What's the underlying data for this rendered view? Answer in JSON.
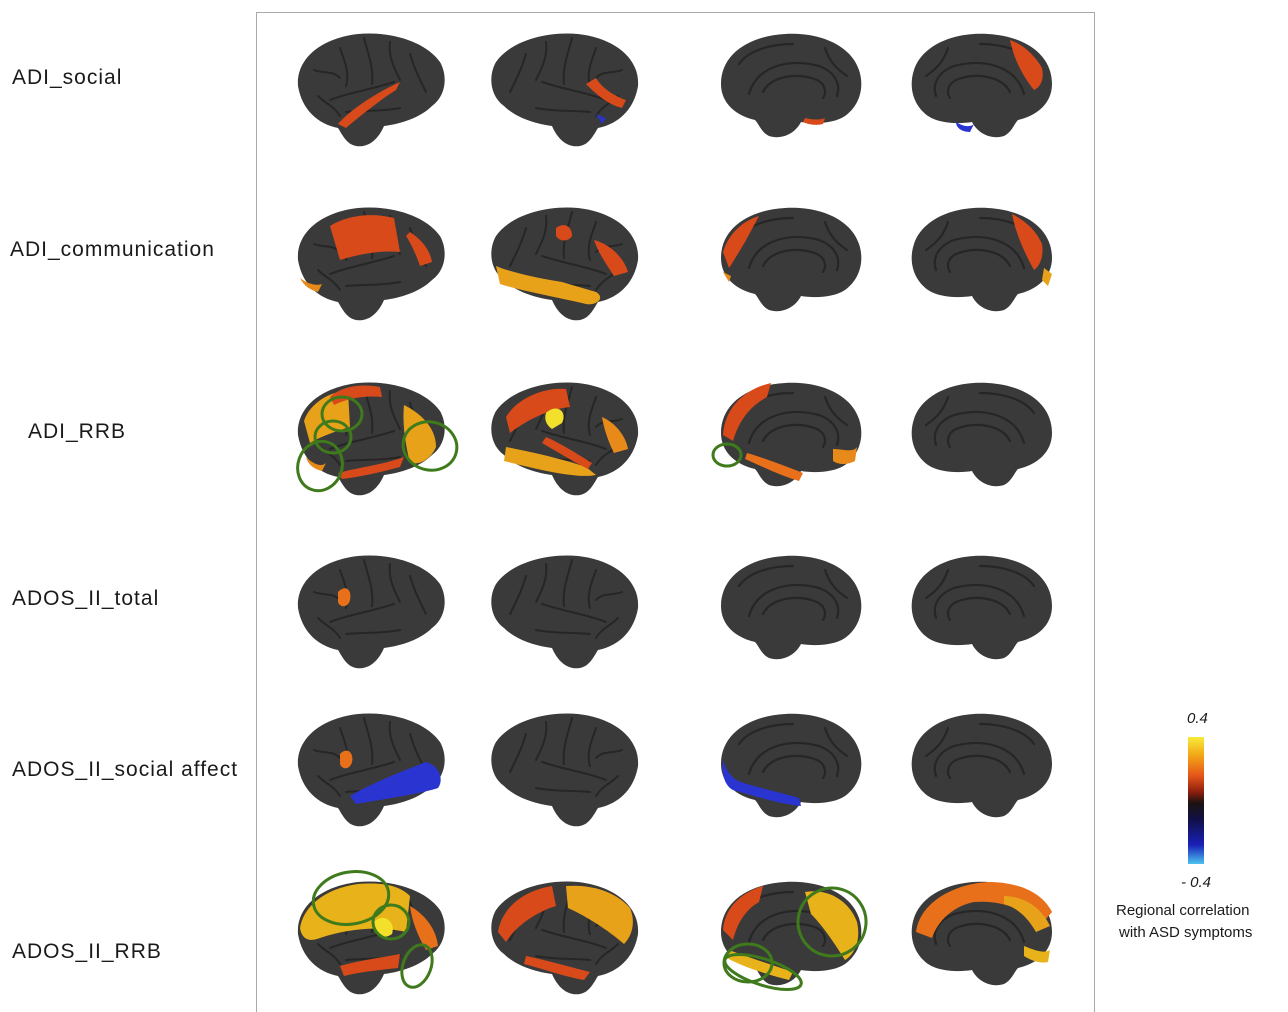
{
  "rows": [
    {
      "label": "ADI_social"
    },
    {
      "label": "ADI_communication"
    },
    {
      "label": "ADI_RRB"
    },
    {
      "label": "ADOS_II_total"
    },
    {
      "label": "ADOS_II_social affect"
    },
    {
      "label": "ADOS_II_RRB"
    }
  ],
  "colorbar": {
    "max_label": "0.4",
    "min_label": "- 0.4",
    "caption_line1": "Regional correlation",
    "caption_line2": "with ASD symptoms",
    "colors": [
      "#f7ec3a",
      "#f2a316",
      "#e6581a",
      "#8f1f10",
      "#1c1210",
      "#10104d",
      "#1a20b8",
      "#4cc3ef"
    ]
  },
  "colors": {
    "cortex": "#3a3a3a",
    "sulcus": "#262626",
    "highlight_circle": "#3f7a1c"
  }
}
